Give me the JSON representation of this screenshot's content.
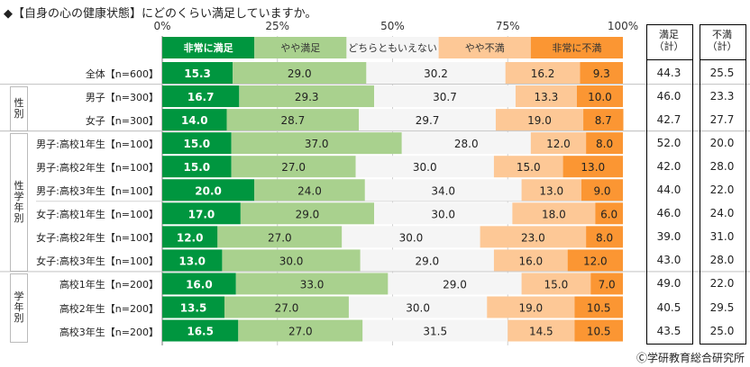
{
  "chart_data": {
    "type": "bar",
    "orientation": "horizontal",
    "stacked": true,
    "title": "◆【自身の心の健康状態】にどのくらい満足していますか。",
    "xlim": [
      0,
      100
    ],
    "tick_labels": [
      "0%",
      "25%",
      "50%",
      "75%",
      "100%"
    ],
    "legend": [
      "非常に満足",
      "やや満足",
      "どちらともいえない",
      "やや不満",
      "非常に不満"
    ],
    "colors": [
      "#00963f",
      "#a9d18e",
      "#f5f5f5",
      "#fdc896",
      "#fb9633"
    ],
    "categories": [
      "全体【n=600】",
      "男子【n=300】",
      "女子【n=300】",
      "男子:高校1年生【n=100】",
      "男子:高校2年生【n=100】",
      "男子:高校3年生【n=100】",
      "女子:高校1年生【n=100】",
      "女子:高校2年生【n=100】",
      "女子:高校3年生【n=100】",
      "高校1年生【n=200】",
      "高校2年生【n=200】",
      "高校3年生【n=200】"
    ],
    "series": [
      {
        "name": "非常に満足",
        "values": [
          15.3,
          16.7,
          14.0,
          15.0,
          15.0,
          20.0,
          17.0,
          12.0,
          13.0,
          16.0,
          13.5,
          16.5
        ]
      },
      {
        "name": "やや満足",
        "values": [
          29.0,
          29.3,
          28.7,
          37.0,
          27.0,
          24.0,
          29.0,
          27.0,
          30.0,
          33.0,
          27.0,
          27.0
        ]
      },
      {
        "name": "どちらともいえない",
        "values": [
          30.2,
          30.7,
          29.7,
          28.0,
          30.0,
          34.0,
          30.0,
          30.0,
          29.0,
          29.0,
          30.0,
          31.5
        ]
      },
      {
        "name": "やや不満",
        "values": [
          16.2,
          13.3,
          19.0,
          12.0,
          15.0,
          13.0,
          18.0,
          23.0,
          16.0,
          15.0,
          19.0,
          14.5
        ]
      },
      {
        "name": "非常に不満",
        "values": [
          9.3,
          10.0,
          8.7,
          8.0,
          13.0,
          9.0,
          6.0,
          8.0,
          12.0,
          7.0,
          10.5,
          10.5
        ]
      }
    ],
    "labels": [
      [
        "15.3",
        "29.0",
        "30.2",
        "16.2",
        "9.3"
      ],
      [
        "16.7",
        "29.3",
        "30.7",
        "13.3",
        "10.0"
      ],
      [
        "14.0",
        "28.7",
        "29.7",
        "19.0",
        "8.7"
      ],
      [
        "15.0",
        "37.0",
        "28.0",
        "12.0",
        "8.0"
      ],
      [
        "15.0",
        "27.0",
        "30.0",
        "15.0",
        "13.0"
      ],
      [
        "20.0",
        "24.0",
        "34.0",
        "13.0",
        "9.0"
      ],
      [
        "17.0",
        "29.0",
        "30.0",
        "18.0",
        "6.0"
      ],
      [
        "12.0",
        "27.0",
        "30.0",
        "23.0",
        "8.0"
      ],
      [
        "13.0",
        "30.0",
        "29.0",
        "16.0",
        "12.0"
      ],
      [
        "16.0",
        "33.0",
        "29.0",
        "15.0",
        "7.0"
      ],
      [
        "13.5",
        "27.0",
        "30.0",
        "19.0",
        "10.5"
      ],
      [
        "16.5",
        "27.0",
        "31.5",
        "14.5",
        "10.5"
      ]
    ],
    "groups": [
      {
        "label": "性別",
        "rows": [
          1,
          2
        ]
      },
      {
        "label": "性学年別",
        "rows": [
          3,
          8
        ]
      },
      {
        "label": "学年別",
        "rows": [
          9,
          11
        ]
      }
    ],
    "summary": {
      "satisfied_header": "満足\n（計）",
      "dissatisfied_header": "不満\n（計）",
      "satisfied": [
        "44.3",
        "46.0",
        "42.7",
        "52.0",
        "42.0",
        "44.0",
        "46.0",
        "39.0",
        "43.0",
        "49.0",
        "40.5",
        "43.5"
      ],
      "dissatisfied": [
        "25.5",
        "23.3",
        "27.7",
        "20.0",
        "28.0",
        "22.0",
        "24.0",
        "31.0",
        "28.0",
        "22.0",
        "29.5",
        "25.0"
      ]
    }
  },
  "footer": {
    "copyright": "Ⓒ学研教育総合研究所"
  }
}
